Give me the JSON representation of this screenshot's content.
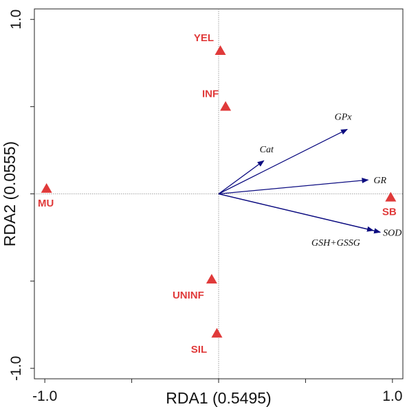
{
  "chart_data": {
    "type": "scatter",
    "xlabel": "RDA1 (0.5495)",
    "ylabel": "RDA2 (0.0555)",
    "xlim": [
      -1.06,
      1.06
    ],
    "ylim": [
      -1.06,
      1.06
    ],
    "x_ticks": [
      {
        "value": -1.0,
        "label": "-1.0"
      },
      {
        "value": 1.0,
        "label": "1.0"
      }
    ],
    "y_ticks": [
      {
        "value": 1.0,
        "label": "1.0"
      },
      {
        "value": -1.0,
        "label": "-1.0"
      }
    ],
    "minor_ticks": [
      -0.5,
      0.5
    ],
    "reference_lines": {
      "x": 0,
      "y": 0
    },
    "grid": false,
    "colors": {
      "sites": "#e03a3a",
      "arrows": "#0b0b80",
      "frame": "#222222",
      "reference": "#888888"
    },
    "sites": [
      {
        "name": "YEL",
        "x": 0.01,
        "y": 0.82
      },
      {
        "name": "INF",
        "x": 0.04,
        "y": 0.5
      },
      {
        "name": "MU",
        "x": -0.99,
        "y": 0.03
      },
      {
        "name": "SB",
        "x": 0.99,
        "y": -0.02
      },
      {
        "name": "UNINF",
        "x": -0.04,
        "y": -0.49
      },
      {
        "name": "SIL",
        "x": -0.01,
        "y": -0.8
      }
    ],
    "arrows": [
      {
        "name": "Cat",
        "x": 0.26,
        "y": 0.19
      },
      {
        "name": "GPx",
        "x": 0.74,
        "y": 0.37
      },
      {
        "name": "GR",
        "x": 0.86,
        "y": 0.08
      },
      {
        "name": "SOD",
        "x": 0.93,
        "y": -0.22
      },
      {
        "name": "GSH+GSSG",
        "x": 0.89,
        "y": -0.21
      }
    ]
  }
}
